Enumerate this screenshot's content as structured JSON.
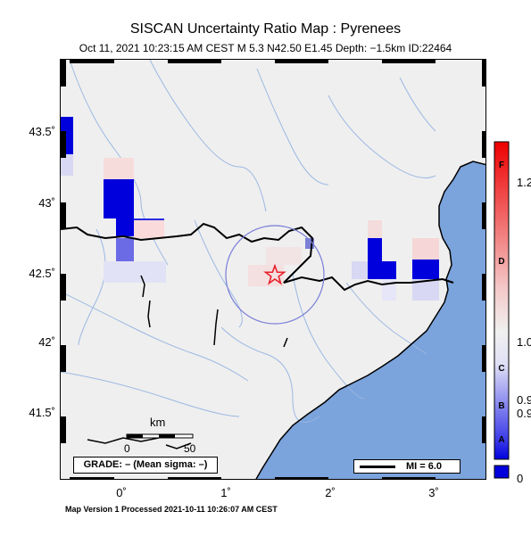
{
  "header": {
    "title": "SISCAN Uncertainty Ratio Map : Pyrenees",
    "subtitle": "Oct 11, 2021 10:23:15 AM CEST   M 5.3   N42.50 E1.45   Depth: −1.5km   ID:22464"
  },
  "axes": {
    "y_ticks": [
      "43.5˚",
      "43˚",
      "42.5˚",
      "42˚",
      "41.5˚"
    ],
    "x_ticks": [
      "0˚",
      "1˚",
      "2˚",
      "3˚"
    ]
  },
  "legend": {
    "grade_text": "GRADE: – (Mean sigma: –)",
    "mi_text": "MI = 6.0",
    "scale_unit": "km",
    "scale_start": "0",
    "scale_end": "50"
  },
  "colorbar": {
    "tick_values": [
      "1.2",
      "1.0",
      "0.9",
      "0.9",
      "0"
    ],
    "grades": [
      "F",
      "D",
      "C",
      "B",
      "A"
    ],
    "colors": {
      "low": "#0000dd",
      "mid": "#f0f0f0",
      "high": "#ee0000"
    }
  },
  "footer": {
    "text": "Map Version 1 Processed 2021-10-11 10:26:07 AM CEST"
  },
  "colors": {
    "land": "#efefef",
    "sea": "#7ba3dc",
    "river": "#9bb8e2",
    "border": "#000000",
    "epicenter": "#e8202c",
    "circle": "#7b7fd6"
  }
}
